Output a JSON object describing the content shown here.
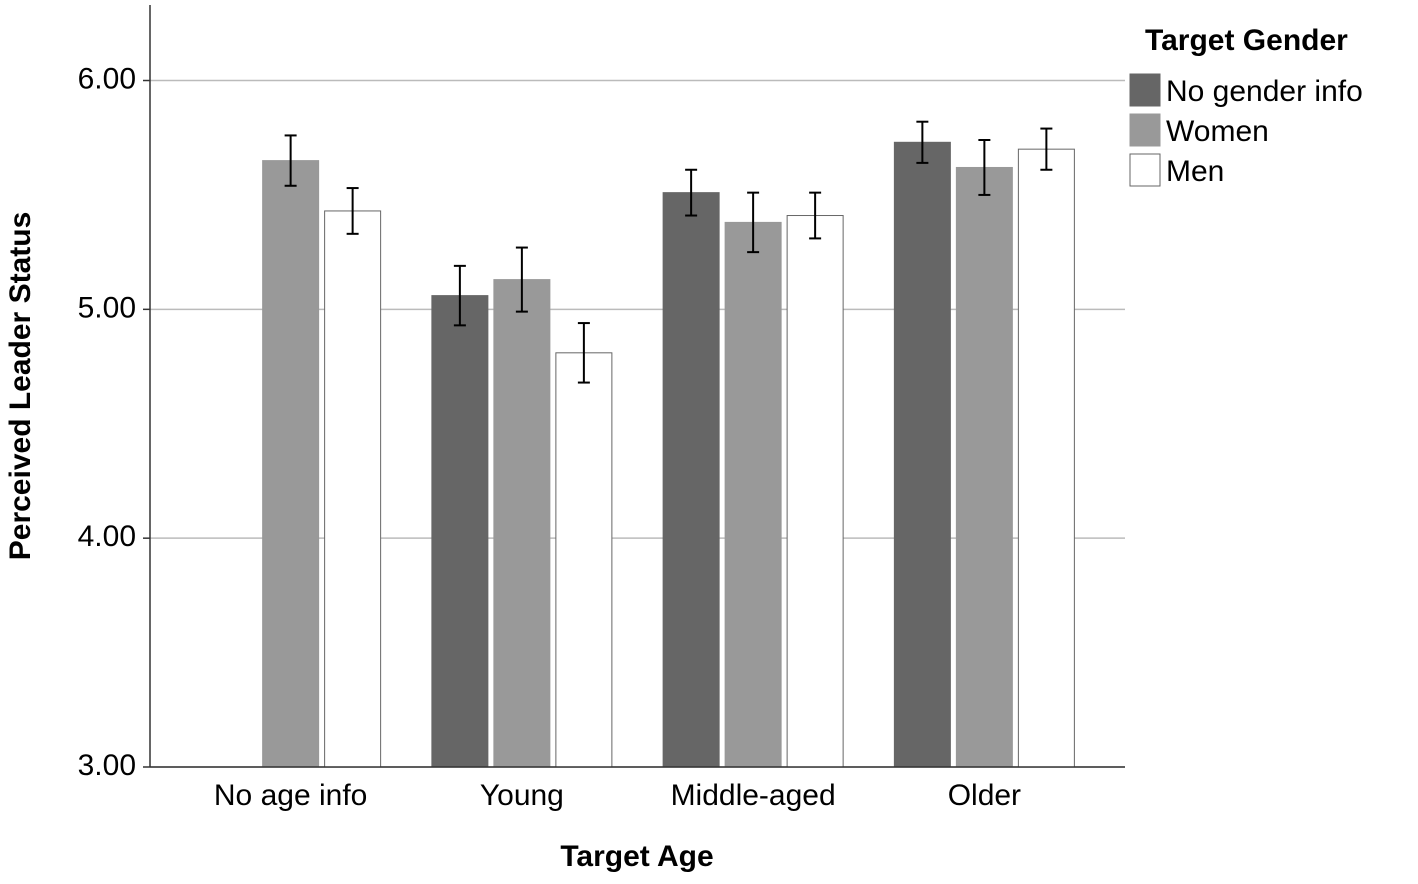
{
  "chart_data": {
    "type": "bar",
    "x_label": "Target Age",
    "y_label": "Perceived Leader Status",
    "categories": [
      "No age info",
      "Young",
      "Middle-aged",
      "Older"
    ],
    "legend_title": "Target Gender",
    "legend": "right",
    "series": [
      {
        "name": "No gender info",
        "color": "#666666",
        "values": [
          null,
          5.06,
          5.51,
          5.73
        ],
        "errors": [
          null,
          0.13,
          0.1,
          0.09
        ]
      },
      {
        "name": "Women",
        "color": "#999999",
        "values": [
          5.65,
          5.13,
          5.38,
          5.62
        ],
        "errors": [
          0.11,
          0.14,
          0.13,
          0.12
        ]
      },
      {
        "name": "Men",
        "color": "#ffffff",
        "values": [
          5.43,
          4.81,
          5.41,
          5.7
        ],
        "errors": [
          0.1,
          0.13,
          0.1,
          0.09
        ]
      }
    ],
    "ylim": [
      3,
      6.33
    ],
    "yticks": [
      {
        "value": 3,
        "label": "3.00"
      },
      {
        "value": 4,
        "label": "4.00"
      },
      {
        "value": 5,
        "label": "5.00"
      },
      {
        "value": 6,
        "label": "6.00"
      }
    ],
    "grid": true
  }
}
